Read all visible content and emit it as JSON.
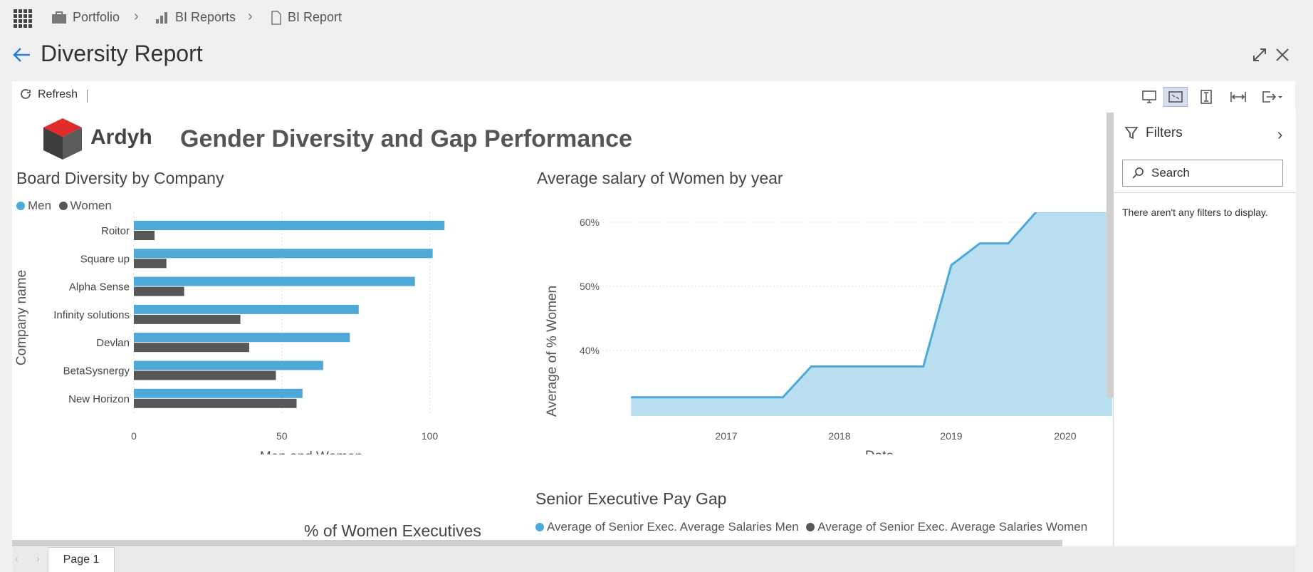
{
  "breadcrumb": {
    "items": [
      {
        "label": "Portfolio",
        "icon": "briefcase-icon"
      },
      {
        "label": "BI Reports",
        "icon": "bar-chart-icon"
      },
      {
        "label": "BI Report",
        "icon": "document-icon"
      }
    ]
  },
  "header": {
    "title": "Diversity Report"
  },
  "toolbar": {
    "refresh_label": "Refresh"
  },
  "report": {
    "logo_text": "Ardyh",
    "title": "Gender Diversity and Gap Performance"
  },
  "board_chart": {
    "title": "Board Diversity by Company",
    "legend": [
      "Men",
      "Women"
    ]
  },
  "salary_chart": {
    "title": "Average salary of Women by year"
  },
  "pay_gap": {
    "title": "Senior Executive Pay Gap",
    "legend": [
      "Average of Senior Exec. Average Salaries Men",
      "Average of Senior Exec. Average Salaries Women"
    ]
  },
  "women_exec": {
    "title": "% of Women Executives"
  },
  "filters": {
    "title": "Filters",
    "search_placeholder": "Search",
    "empty_text": "There aren't any filters to display."
  },
  "pages": {
    "tab_label": "Page 1"
  },
  "colors": {
    "men": "#4ea9d6",
    "women": "#575757",
    "area": "#b9dff0",
    "line": "#4ea9d6",
    "accent": "#2a7fd6"
  },
  "chart_data": [
    {
      "type": "bar",
      "title": "Board Diversity by Company",
      "xlabel": "Men and Women",
      "ylabel": "Company name",
      "categories": [
        "Roitor",
        "Square up",
        "Alpha Sense",
        "Infinity solutions",
        "Devlan",
        "BetaSysnergy",
        "New Horizon"
      ],
      "series": [
        {
          "name": "Men",
          "values": [
            105,
            101,
            95,
            76,
            73,
            64,
            57
          ]
        },
        {
          "name": "Women",
          "values": [
            7,
            11,
            17,
            36,
            39,
            48,
            55
          ]
        }
      ],
      "xticks": [
        0,
        50,
        100
      ],
      "xlim": [
        0,
        110
      ],
      "legend": "top-left",
      "grid": true
    },
    {
      "type": "area",
      "title": "Average salary of Women by year",
      "xlabel": "Date",
      "ylabel": "Average of % Women",
      "x": [
        "2016-04",
        "2016-07",
        "2016-10",
        "2017-01",
        "2017-04",
        "2017-07",
        "2017-10",
        "2018-01",
        "2018-04",
        "2018-07",
        "2018-10",
        "2019-01",
        "2019-04",
        "2019-07",
        "2019-10",
        "2020-01",
        "2020-04",
        "2020-07",
        "2020-10"
      ],
      "values": [
        32.7,
        32.7,
        32.7,
        32.7,
        32.7,
        32.7,
        37.5,
        37.5,
        37.5,
        37.5,
        37.5,
        53.3,
        56.7,
        56.7,
        61.7,
        61.7,
        61.7,
        61.7,
        61.7
      ],
      "yticks": [
        "40%",
        "50%",
        "60%"
      ],
      "xticks": [
        "2017",
        "2018",
        "2019",
        "2020"
      ],
      "ylim": [
        30,
        63
      ],
      "grid": true
    }
  ]
}
